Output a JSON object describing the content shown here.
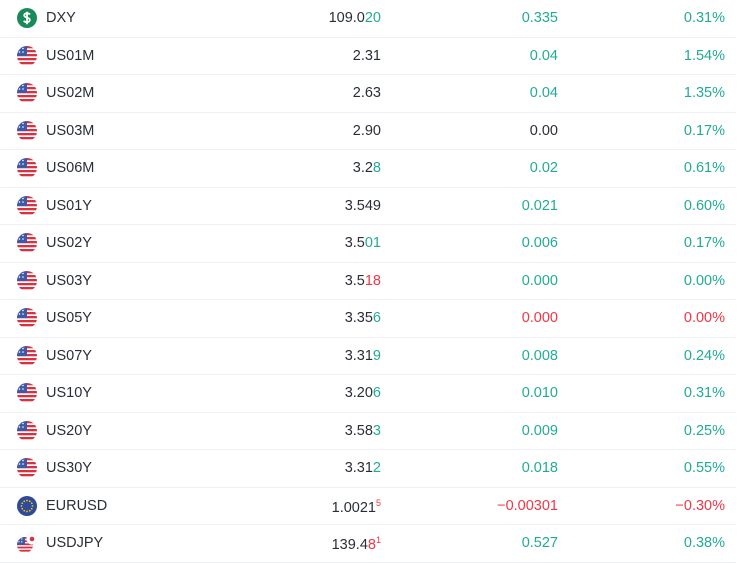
{
  "colors": {
    "up": "#22ab94",
    "down": "#f23645",
    "flat": "#2a2e39"
  },
  "rows": [
    {
      "icon": "coin",
      "symbol": "DXY",
      "price": {
        "base": "109.0",
        "tail": "20",
        "tail_dir": "up"
      },
      "change": "0.335",
      "change_dir": "up",
      "change_pct": "0.31%",
      "pct_dir": "up"
    },
    {
      "icon": "us",
      "symbol": "US01M",
      "price": {
        "base": "2.31"
      },
      "change": "0.04",
      "change_dir": "up",
      "change_pct": "1.54%",
      "pct_dir": "up"
    },
    {
      "icon": "us",
      "symbol": "US02M",
      "price": {
        "base": "2.63"
      },
      "change": "0.04",
      "change_dir": "up",
      "change_pct": "1.35%",
      "pct_dir": "up"
    },
    {
      "icon": "us",
      "symbol": "US03M",
      "price": {
        "base": "2.90"
      },
      "change": "0.00",
      "change_dir": "flat",
      "change_pct": "0.17%",
      "pct_dir": "up"
    },
    {
      "icon": "us",
      "symbol": "US06M",
      "price": {
        "base": "3.2",
        "tail": "8",
        "tail_dir": "up"
      },
      "change": "0.02",
      "change_dir": "up",
      "change_pct": "0.61%",
      "pct_dir": "up"
    },
    {
      "icon": "us",
      "symbol": "US01Y",
      "price": {
        "base": "3.549"
      },
      "change": "0.021",
      "change_dir": "up",
      "change_pct": "0.60%",
      "pct_dir": "up"
    },
    {
      "icon": "us",
      "symbol": "US02Y",
      "price": {
        "base": "3.5",
        "tail": "01",
        "tail_dir": "up"
      },
      "change": "0.006",
      "change_dir": "up",
      "change_pct": "0.17%",
      "pct_dir": "up"
    },
    {
      "icon": "us",
      "symbol": "US03Y",
      "price": {
        "base": "3.5",
        "tail": "18",
        "tail_dir": "down"
      },
      "change": "0.000",
      "change_dir": "up",
      "change_pct": "0.00%",
      "pct_dir": "up"
    },
    {
      "icon": "us",
      "symbol": "US05Y",
      "price": {
        "base": "3.35",
        "tail": "6",
        "tail_dir": "up"
      },
      "change": "0.000",
      "change_dir": "down",
      "change_pct": "0.00%",
      "pct_dir": "down"
    },
    {
      "icon": "us",
      "symbol": "US07Y",
      "price": {
        "base": "3.31",
        "tail": "9",
        "tail_dir": "up"
      },
      "change": "0.008",
      "change_dir": "up",
      "change_pct": "0.24%",
      "pct_dir": "up"
    },
    {
      "icon": "us",
      "symbol": "US10Y",
      "price": {
        "base": "3.20",
        "tail": "6",
        "tail_dir": "up"
      },
      "change": "0.010",
      "change_dir": "up",
      "change_pct": "0.31%",
      "pct_dir": "up"
    },
    {
      "icon": "us",
      "symbol": "US20Y",
      "price": {
        "base": "3.58",
        "tail": "3",
        "tail_dir": "up"
      },
      "change": "0.009",
      "change_dir": "up",
      "change_pct": "0.25%",
      "pct_dir": "up"
    },
    {
      "icon": "us",
      "symbol": "US30Y",
      "price": {
        "base": "3.31",
        "tail": "2",
        "tail_dir": "up"
      },
      "change": "0.018",
      "change_dir": "up",
      "change_pct": "0.55%",
      "pct_dir": "up"
    },
    {
      "icon": "eu",
      "symbol": "EURUSD",
      "price": {
        "base": "1.0021",
        "sup": "5",
        "tail_dir": "down"
      },
      "change": "−0.00301",
      "change_dir": "down",
      "change_pct": "−0.30%",
      "pct_dir": "down"
    },
    {
      "icon": "usjp",
      "symbol": "USDJPY",
      "price": {
        "base": "139.4",
        "tail": "8",
        "sup": "1",
        "tail_dir": "down"
      },
      "change": "0.527",
      "change_dir": "up",
      "change_pct": "0.38%",
      "pct_dir": "up"
    }
  ]
}
